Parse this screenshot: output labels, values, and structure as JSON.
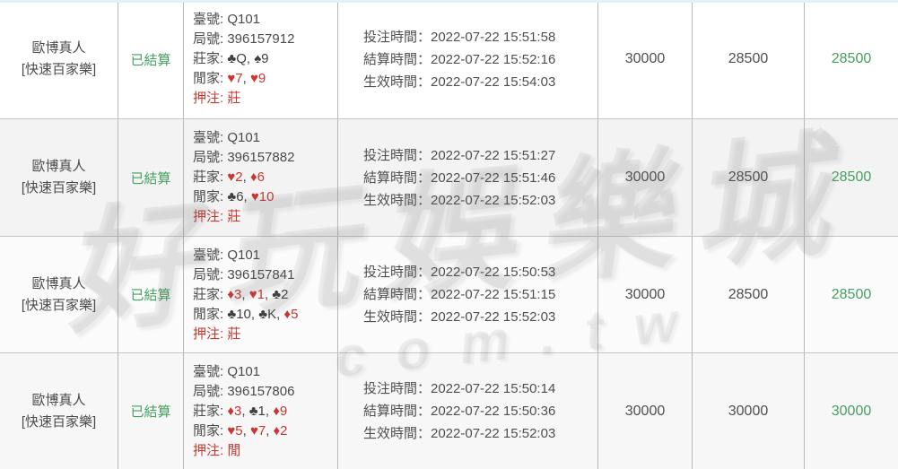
{
  "colors": {
    "green": "#44a05e",
    "red": "#c9372f",
    "strip": "#ddf3f9"
  },
  "watermark": {
    "main": "好玩娛樂城",
    "sub": "com.tw"
  },
  "rows": [
    {
      "game_line1": "歐博真人",
      "game_line2": "[快速百家樂]",
      "status": "已結算",
      "table_line": "臺號: Q101",
      "round_line": "局號: 396157912",
      "banker_label": "莊家:",
      "banker_cards": [
        {
          "text": "♣Q",
          "suit": "black"
        },
        {
          "text": "♠9",
          "suit": "black"
        }
      ],
      "player_label": "閒家:",
      "player_cards": [
        {
          "text": "♥7",
          "suit": "red"
        },
        {
          "text": "♥9",
          "suit": "red"
        }
      ],
      "bet_line": "押注: 莊",
      "time_lines": [
        "投注時間：2022-07-22 15:51:58",
        "結算時間：2022-07-22 15:52:16",
        "生效時間：2022-07-22 15:54:03"
      ],
      "bet_amount": "30000",
      "valid_amount": "28500",
      "payout": "28500"
    },
    {
      "game_line1": "歐博真人",
      "game_line2": "[快速百家樂]",
      "status": "已結算",
      "table_line": "臺號: Q101",
      "round_line": "局號: 396157882",
      "banker_label": "莊家:",
      "banker_cards": [
        {
          "text": "♥2",
          "suit": "red"
        },
        {
          "text": "♦6",
          "suit": "red"
        }
      ],
      "player_label": "閒家:",
      "player_cards": [
        {
          "text": "♣6",
          "suit": "black"
        },
        {
          "text": "♥10",
          "suit": "red"
        }
      ],
      "bet_line": "押注: 莊",
      "time_lines": [
        "投注時間：2022-07-22 15:51:27",
        "結算時間：2022-07-22 15:51:46",
        "生效時間：2022-07-22 15:52:03"
      ],
      "bet_amount": "30000",
      "valid_amount": "28500",
      "payout": "28500"
    },
    {
      "game_line1": "歐博真人",
      "game_line2": "[快速百家樂]",
      "status": "已結算",
      "table_line": "臺號: Q101",
      "round_line": "局號: 396157841",
      "banker_label": "莊家:",
      "banker_cards": [
        {
          "text": "♦3",
          "suit": "red"
        },
        {
          "text": "♥1",
          "suit": "red"
        },
        {
          "text": "♣2",
          "suit": "black"
        }
      ],
      "player_label": "閒家:",
      "player_cards": [
        {
          "text": "♣10",
          "suit": "black"
        },
        {
          "text": "♣K",
          "suit": "black"
        },
        {
          "text": "♦5",
          "suit": "red"
        }
      ],
      "bet_line": "押注: 莊",
      "time_lines": [
        "投注時間：2022-07-22 15:50:53",
        "結算時間：2022-07-22 15:51:15",
        "生效時間：2022-07-22 15:52:03"
      ],
      "bet_amount": "30000",
      "valid_amount": "28500",
      "payout": "28500"
    },
    {
      "game_line1": "歐博真人",
      "game_line2": "[快速百家樂]",
      "status": "已結算",
      "table_line": "臺號: Q101",
      "round_line": "局號: 396157806",
      "banker_label": "莊家:",
      "banker_cards": [
        {
          "text": "♦3",
          "suit": "red"
        },
        {
          "text": "♣1",
          "suit": "black"
        },
        {
          "text": "♦9",
          "suit": "red"
        }
      ],
      "player_label": "閒家:",
      "player_cards": [
        {
          "text": "♥5",
          "suit": "red"
        },
        {
          "text": "♥7",
          "suit": "red"
        },
        {
          "text": "♦2",
          "suit": "red"
        }
      ],
      "bet_line": "押注: 閒",
      "time_lines": [
        "投注時間：2022-07-22 15:50:14",
        "結算時間：2022-07-22 15:50:36",
        "生效時間：2022-07-22 15:52:03"
      ],
      "bet_amount": "30000",
      "valid_amount": "30000",
      "payout": "30000"
    }
  ]
}
